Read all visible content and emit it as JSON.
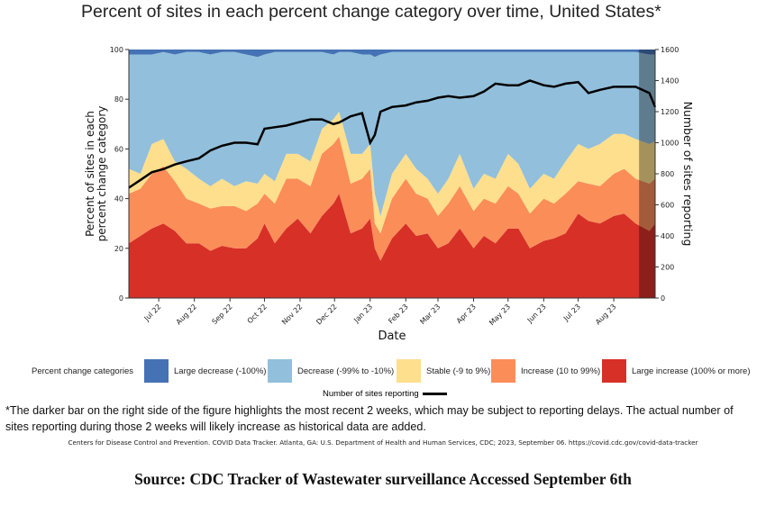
{
  "chart_data": {
    "type": "area",
    "title": "Percent of sites in each percent change category over time, United States*",
    "xlabel": "Date",
    "ylabel": "Percent of sites in each percent change category",
    "y2label": "Number of sites reporting",
    "ylim": [
      0,
      100
    ],
    "y2lim": [
      0,
      1600
    ],
    "yticks": [
      "0",
      "20",
      "40",
      "60",
      "80",
      "100"
    ],
    "y2ticks": [
      "0",
      "200",
      "400",
      "600",
      "800",
      "1000",
      "1200",
      "1400",
      "1600"
    ],
    "xticks": [
      {
        "date": "2022-07-01",
        "label": "Jul 22"
      },
      {
        "date": "2022-08-01",
        "label": "Aug 22"
      },
      {
        "date": "2022-09-01",
        "label": "Sep 22"
      },
      {
        "date": "2022-10-01",
        "label": "Oct 22"
      },
      {
        "date": "2022-11-01",
        "label": "Nov 22"
      },
      {
        "date": "2022-12-01",
        "label": "Dec 22"
      },
      {
        "date": "2023-01-01",
        "label": "Jan 23"
      },
      {
        "date": "2023-02-01",
        "label": "Feb 23"
      },
      {
        "date": "2023-03-01",
        "label": "Mar 23"
      },
      {
        "date": "2023-04-01",
        "label": "Apr 23"
      },
      {
        "date": "2023-05-01",
        "label": "May 23"
      },
      {
        "date": "2023-06-01",
        "label": "Jun 23"
      },
      {
        "date": "2023-07-01",
        "label": "Jul 23"
      },
      {
        "date": "2023-08-01",
        "label": "Aug 23"
      }
    ],
    "xrange": [
      "2022-06-05",
      "2023-09-06"
    ],
    "highlight_start": "2023-08-23",
    "grid": false,
    "legend_position": "bottom",
    "legend_title": "Percent change categories",
    "series_order": [
      "Large increase (100% or more)",
      "Increase (10 to 99%)",
      "Stable (-9 to 9%)",
      "Decrease (-99% to -10%)",
      "Large decrease (-100%)"
    ],
    "series": [
      {
        "name": "Large decrease (-100%)",
        "color": "#4472b4"
      },
      {
        "name": "Decrease (-99% to -10%)",
        "color": "#92bfdb"
      },
      {
        "name": "Stable (-9 to 9%)",
        "color": "#fddf8d"
      },
      {
        "name": "Increase (10 to 99%)",
        "color": "#fb8d59"
      },
      {
        "name": "Large increase (100% or more)",
        "color": "#d73027"
      }
    ],
    "line_series": {
      "name": "Number of sites reporting",
      "color": "#000000"
    },
    "dates": [
      "2022-06-05",
      "2022-06-15",
      "2022-06-25",
      "2022-07-05",
      "2022-07-15",
      "2022-07-25",
      "2022-08-05",
      "2022-08-15",
      "2022-08-25",
      "2022-09-05",
      "2022-09-15",
      "2022-09-25",
      "2022-10-01",
      "2022-10-10",
      "2022-10-20",
      "2022-10-30",
      "2022-11-10",
      "2022-11-20",
      "2022-11-30",
      "2022-12-05",
      "2022-12-15",
      "2022-12-25",
      "2023-01-01",
      "2023-01-05",
      "2023-01-10",
      "2023-01-20",
      "2023-02-01",
      "2023-02-10",
      "2023-02-20",
      "2023-03-01",
      "2023-03-10",
      "2023-03-20",
      "2023-04-01",
      "2023-04-10",
      "2023-04-20",
      "2023-05-01",
      "2023-05-10",
      "2023-05-20",
      "2023-06-01",
      "2023-06-10",
      "2023-06-20",
      "2023-07-01",
      "2023-07-10",
      "2023-07-20",
      "2023-08-01",
      "2023-08-10",
      "2023-08-20",
      "2023-09-01",
      "2023-09-06"
    ],
    "large_increase": [
      22,
      25,
      28,
      30,
      27,
      22,
      22,
      19,
      21,
      20,
      20,
      24,
      30,
      22,
      28,
      32,
      26,
      33,
      38,
      42,
      26,
      28,
      32,
      20,
      15,
      24,
      30,
      25,
      26,
      20,
      22,
      28,
      20,
      25,
      22,
      28,
      28,
      20,
      23,
      24,
      26,
      34,
      31,
      30,
      33,
      34,
      30,
      27,
      30
    ],
    "increase": [
      20,
      19,
      22,
      23,
      20,
      18,
      16,
      17,
      16,
      17,
      15,
      14,
      12,
      16,
      20,
      16,
      19,
      25,
      24,
      23,
      20,
      20,
      20,
      10,
      11,
      16,
      18,
      17,
      14,
      13,
      16,
      17,
      15,
      15,
      16,
      17,
      14,
      14,
      17,
      14,
      16,
      13,
      15,
      15,
      17,
      18,
      18,
      19,
      18
    ],
    "stable": [
      10,
      6,
      12,
      11,
      8,
      12,
      10,
      9,
      11,
      8,
      12,
      8,
      8,
      9,
      10,
      10,
      10,
      10,
      10,
      10,
      12,
      10,
      10,
      12,
      7,
      10,
      10,
      10,
      8,
      9,
      10,
      13,
      9,
      10,
      10,
      13,
      12,
      10,
      10,
      10,
      13,
      15,
      14,
      17,
      16,
      14,
      16,
      16,
      15
    ],
    "decrease": [
      46,
      48,
      36,
      35,
      43,
      47,
      51,
      53,
      51,
      54,
      51,
      51,
      48,
      52,
      41,
      41,
      44,
      31,
      26,
      24,
      41,
      40,
      36,
      55,
      65,
      49,
      41,
      47,
      51,
      57,
      51,
      41,
      55,
      49,
      51,
      41,
      45,
      55,
      49,
      51,
      44,
      37,
      39,
      37,
      33,
      33,
      35,
      36,
      35
    ],
    "large_decrease": [
      2,
      2,
      2,
      1,
      2,
      1,
      1,
      2,
      1,
      1,
      2,
      3,
      2,
      1,
      1,
      1,
      1,
      1,
      2,
      1,
      1,
      2,
      2,
      3,
      2,
      1,
      1,
      1,
      1,
      1,
      1,
      1,
      1,
      1,
      1,
      1,
      1,
      1,
      1,
      1,
      1,
      1,
      1,
      1,
      1,
      1,
      1,
      2,
      2
    ],
    "sites": [
      710,
      760,
      810,
      830,
      860,
      880,
      900,
      950,
      980,
      1000,
      1000,
      990,
      1090,
      1100,
      1110,
      1130,
      1150,
      1150,
      1120,
      1130,
      1170,
      1190,
      1000,
      1050,
      1200,
      1230,
      1240,
      1260,
      1270,
      1290,
      1300,
      1290,
      1300,
      1330,
      1380,
      1370,
      1370,
      1400,
      1370,
      1360,
      1380,
      1390,
      1320,
      1340,
      1360,
      1360,
      1360,
      1320,
      1230
    ]
  },
  "legend": {
    "title": "Percent change categories",
    "items": [
      "Large decrease (-100%)",
      "Decrease (-99% to -10%)",
      "Stable (-9 to 9%)",
      "Increase (10 to 99%)",
      "Large increase (100% or more)"
    ],
    "line_label": "Number of sites reporting"
  },
  "footnote": "*The darker bar on the right side of the figure highlights the most recent 2 weeks, which may be subject to reporting delays. The actual number of sites reporting during those 2 weeks will likely increase as historical data are added.",
  "citation": "Centers for Disease Control and Prevention. COVID Data Tracker. Atlanta, GA: U.S. Department of Health and Human Services, CDC; 2023, September 06. https://covid.cdc.gov/covid-data-tracker",
  "source": "Source: CDC Tracker of Wastewater surveillance Accessed September 6th"
}
